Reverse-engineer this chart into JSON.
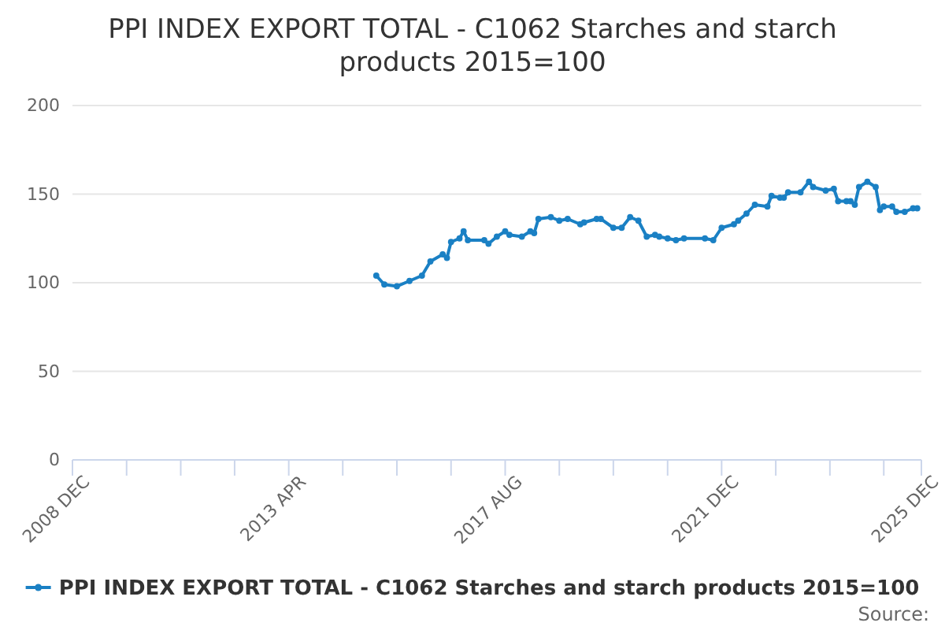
{
  "chart_data": {
    "type": "line",
    "title": "PPI INDEX EXPORT TOTAL - C1062 Starches and starch products 2015=100",
    "annotations": [
      "Source:"
    ],
    "x": [
      "2015-01",
      "2015-03",
      "2015-06",
      "2015-09",
      "2015-12",
      "2016-02",
      "2016-05",
      "2016-06",
      "2016-07",
      "2016-09",
      "2016-10",
      "2016-11",
      "2017-03",
      "2017-04",
      "2017-06",
      "2017-08",
      "2017-09",
      "2017-12",
      "2018-02",
      "2018-03",
      "2018-04",
      "2018-07",
      "2018-09",
      "2018-11",
      "2019-02",
      "2019-03",
      "2019-06",
      "2019-07",
      "2019-10",
      "2019-12",
      "2020-02",
      "2020-04",
      "2020-06",
      "2020-08",
      "2020-09",
      "2020-11",
      "2021-01",
      "2021-03",
      "2021-08",
      "2021-10",
      "2021-12",
      "2022-03",
      "2022-04",
      "2022-06",
      "2022-08",
      "2022-11",
      "2022-12",
      "2023-02",
      "2023-03",
      "2023-04",
      "2023-07",
      "2023-09",
      "2023-10",
      "2024-01",
      "2024-03",
      "2024-04",
      "2024-06",
      "2024-07",
      "2024-08",
      "2024-09",
      "2024-11",
      "2025-01",
      "2025-02",
      "2025-03",
      "2025-05",
      "2025-06",
      "2025-08",
      "2025-10",
      "2025-11"
    ],
    "series": [
      {
        "name": "PPI INDEX EXPORT TOTAL - C1062 Starches and starch products 2015=100",
        "color": "#1a80c4",
        "values": [
          104,
          99,
          98,
          101,
          104,
          112,
          116,
          114,
          123,
          125,
          129,
          124,
          124,
          122,
          126,
          129,
          127,
          126,
          129,
          128,
          136,
          137,
          135,
          136,
          133,
          134,
          136,
          136,
          131,
          131,
          137,
          135,
          126,
          127,
          126,
          125,
          124,
          125,
          125,
          124,
          131,
          133,
          135,
          139,
          144,
          143,
          149,
          148,
          148,
          151,
          151,
          157,
          154,
          152,
          153,
          146,
          146,
          146,
          144,
          154,
          157,
          154,
          141,
          143,
          143,
          140,
          140,
          142,
          142
        ]
      }
    ],
    "xlim": [
      "2008-12",
      "2025-12"
    ],
    "xticks": [
      {
        "value": "2008-12",
        "label": "2008 DEC"
      },
      {
        "value": "2010-01",
        "label": null
      },
      {
        "value": "2011-02",
        "label": null
      },
      {
        "value": "2012-03",
        "label": null
      },
      {
        "value": "2013-04",
        "label": "2013 APR"
      },
      {
        "value": "2014-05",
        "label": null
      },
      {
        "value": "2015-06",
        "label": null
      },
      {
        "value": "2016-07",
        "label": null
      },
      {
        "value": "2017-08",
        "label": "2017 AUG"
      },
      {
        "value": "2018-09",
        "label": null
      },
      {
        "value": "2019-10",
        "label": null
      },
      {
        "value": "2020-11",
        "label": null
      },
      {
        "value": "2021-12",
        "label": "2021 DEC"
      },
      {
        "value": "2023-01",
        "label": null
      },
      {
        "value": "2024-02",
        "label": null
      },
      {
        "value": "2025-03",
        "label": null
      },
      {
        "value": "2025-12",
        "label": "2025 DEC"
      }
    ],
    "ylim": [
      0,
      200
    ],
    "yticks": [
      0,
      50,
      100,
      150,
      200
    ],
    "grid": "y",
    "legend": "bottom",
    "marker": "circle",
    "line_style": "solid"
  }
}
